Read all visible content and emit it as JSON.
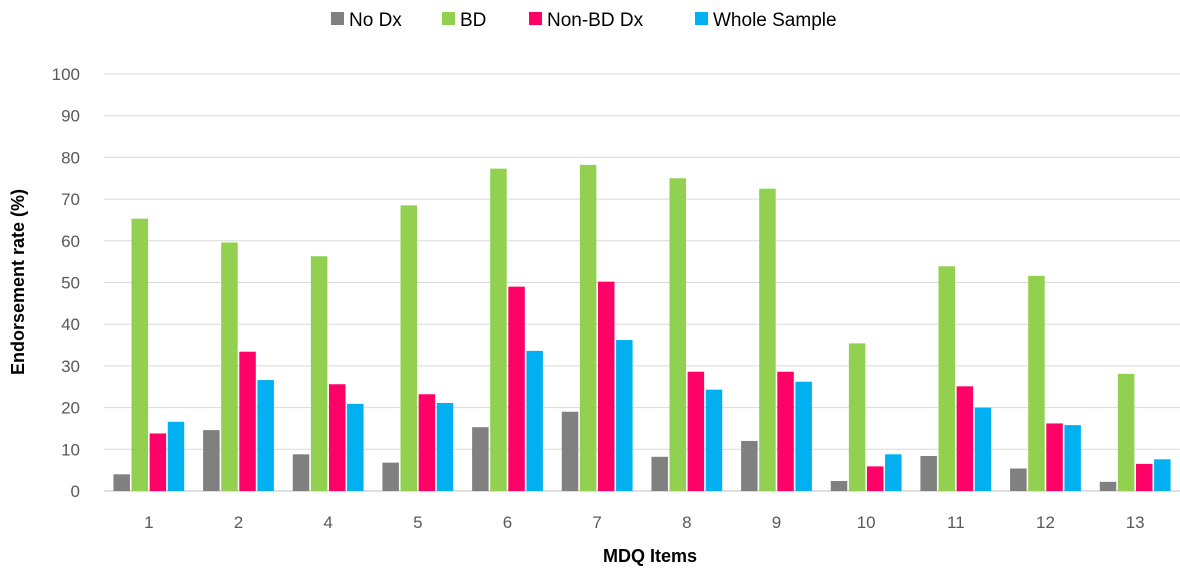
{
  "chart_data": {
    "type": "bar",
    "title": "",
    "xlabel": "MDQ Items",
    "ylabel": "Endorsement rate (%)",
    "ylim": [
      0,
      100
    ],
    "yticks": [
      0,
      10,
      20,
      30,
      40,
      50,
      60,
      70,
      80,
      90,
      100
    ],
    "grid": true,
    "legend_position": "top",
    "categories": [
      "1",
      "2",
      "4",
      "5",
      "6",
      "7",
      "8",
      "9",
      "10",
      "11",
      "12",
      "13"
    ],
    "series": [
      {
        "name": "No Dx",
        "color": "#808080",
        "values": [
          4.0,
          14.6,
          8.8,
          6.8,
          15.3,
          19.0,
          8.2,
          12.0,
          2.4,
          8.4,
          5.4,
          2.2
        ]
      },
      {
        "name": "BD",
        "color": "#92d050",
        "values": [
          65.3,
          59.6,
          56.3,
          68.5,
          77.3,
          78.2,
          75.0,
          72.5,
          35.4,
          53.9,
          51.6,
          28.1
        ]
      },
      {
        "name": "Non-BD Dx",
        "color": "#ff0066",
        "values": [
          13.8,
          33.4,
          25.6,
          23.2,
          49.0,
          50.2,
          28.6,
          28.6,
          5.9,
          25.1,
          16.2,
          6.5
        ]
      },
      {
        "name": "Whole Sample",
        "color": "#00b0f0",
        "values": [
          16.6,
          26.6,
          20.9,
          21.1,
          33.6,
          36.2,
          24.3,
          26.2,
          8.8,
          20.0,
          15.8,
          7.6
        ]
      }
    ]
  }
}
